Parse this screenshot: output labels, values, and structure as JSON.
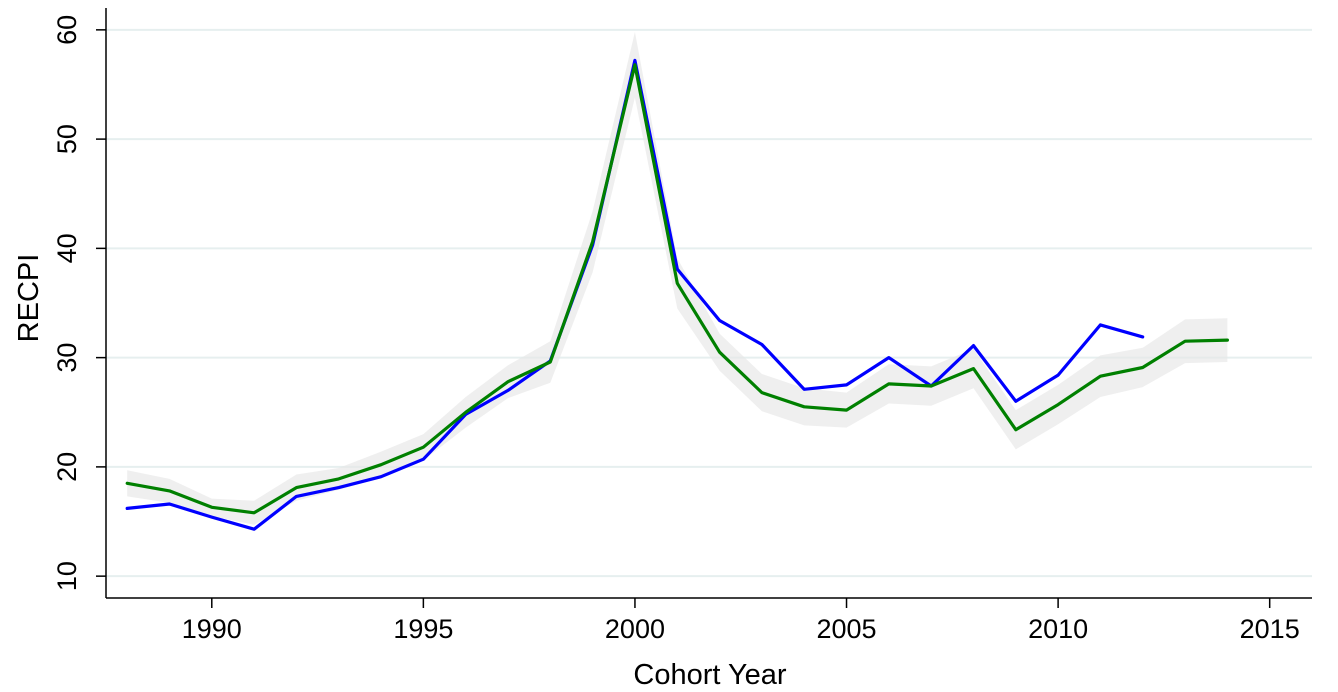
{
  "chart_data": {
    "type": "line",
    "xlabel": "Cohort Year",
    "ylabel": "RECPI",
    "xlim": [
      1987.5,
      2016
    ],
    "ylim": [
      8,
      62
    ],
    "x_ticks": [
      1990,
      1995,
      2000,
      2005,
      2010,
      2015
    ],
    "y_ticks": [
      10,
      20,
      30,
      40,
      50,
      60
    ],
    "grid": true,
    "legend": "none",
    "series": [
      {
        "color": "#0000ff",
        "x": [
          1988,
          1989,
          1990,
          1991,
          1992,
          1993,
          1994,
          1995,
          1996,
          1997,
          1998,
          1999,
          2000,
          2001,
          2002,
          2003,
          2004,
          2005,
          2006,
          2007,
          2008,
          2009,
          2010,
          2011,
          2012
        ],
        "values": [
          16.2,
          16.6,
          15.4,
          14.3,
          17.3,
          18.1,
          19.1,
          20.7,
          24.8,
          27.0,
          29.7,
          40.3,
          57.2,
          38.1,
          33.4,
          31.2,
          27.1,
          27.5,
          30.0,
          27.4,
          31.1,
          26.0,
          28.4,
          33.0,
          31.9
        ]
      },
      {
        "color": "#008000",
        "x": [
          1988,
          1989,
          1990,
          1991,
          1992,
          1993,
          1994,
          1995,
          1996,
          1997,
          1998,
          1999,
          2000,
          2001,
          2002,
          2003,
          2004,
          2005,
          2006,
          2007,
          2008,
          2009,
          2010,
          2011,
          2012,
          2013,
          2014
        ],
        "values": [
          18.5,
          17.8,
          16.3,
          15.8,
          18.1,
          18.9,
          20.2,
          21.8,
          25.0,
          27.8,
          29.6,
          40.6,
          56.8,
          36.8,
          30.5,
          26.8,
          25.5,
          25.2,
          27.6,
          27.4,
          29.0,
          23.4,
          25.7,
          28.3,
          29.1,
          31.5,
          31.6
        ],
        "band": {
          "color": "#e6e6e6",
          "lower": [
            17.3,
            16.7,
            15.5,
            14.7,
            16.9,
            17.9,
            19.0,
            20.6,
            23.6,
            26.3,
            27.7,
            37.8,
            53.8,
            34.5,
            28.8,
            25.1,
            23.8,
            23.6,
            25.8,
            25.6,
            27.2,
            21.6,
            23.9,
            26.4,
            27.3,
            29.5,
            29.6
          ],
          "upper": [
            19.7,
            18.9,
            17.1,
            16.9,
            19.3,
            19.9,
            21.4,
            23.0,
            26.4,
            29.3,
            31.5,
            43.4,
            59.8,
            39.1,
            32.2,
            28.5,
            27.2,
            26.8,
            29.4,
            29.2,
            30.8,
            25.2,
            27.5,
            30.2,
            30.9,
            33.5,
            33.6
          ]
        }
      }
    ]
  }
}
